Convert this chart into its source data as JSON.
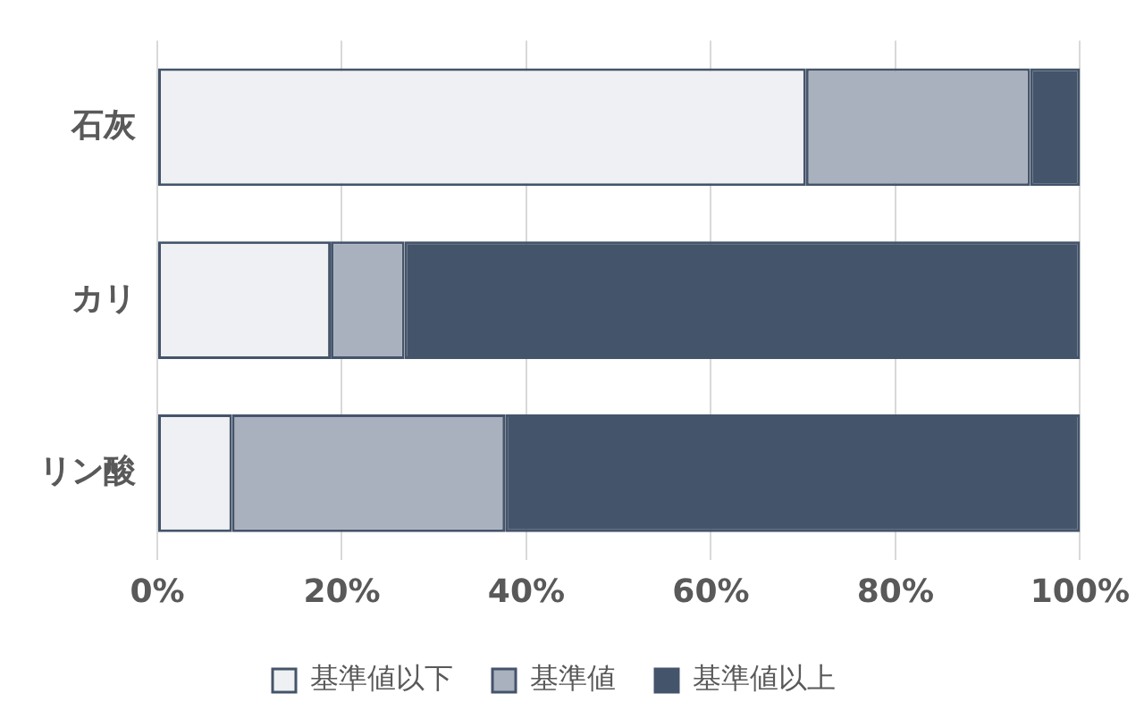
{
  "chart_data": {
    "type": "bar",
    "orientation": "horizontal",
    "stacked": true,
    "categories": [
      "石灰",
      "カリ",
      "リン酸"
    ],
    "series": [
      {
        "name": "基準値以下",
        "color": "#eef0f3",
        "values": [
          70.3,
          18.8,
          8.1
        ]
      },
      {
        "name": "基準値",
        "color": "#a9b1be",
        "values": [
          24.3,
          8,
          29.6
        ]
      },
      {
        "name": "基準値以上",
        "color": "#44546a",
        "values": [
          5.4,
          73.2,
          62.3
        ]
      }
    ],
    "xlim": [
      0,
      100
    ],
    "xticks": [
      {
        "value": 0,
        "label": "0%"
      },
      {
        "value": 20,
        "label": "20%"
      },
      {
        "value": 40,
        "label": "40%"
      },
      {
        "value": 60,
        "label": "60%"
      },
      {
        "value": 80,
        "label": "80%"
      },
      {
        "value": 100,
        "label": "100%"
      }
    ],
    "grid": "x",
    "legend": "bottom"
  }
}
